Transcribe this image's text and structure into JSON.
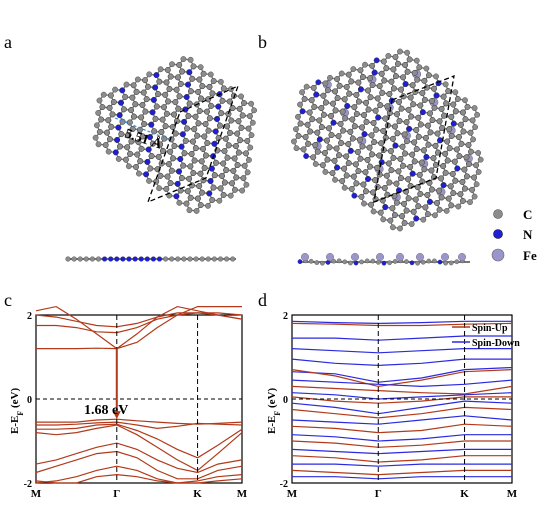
{
  "figure": {
    "panel_labels": [
      "a",
      "b",
      "c",
      "d"
    ],
    "lattice_constant": "5.51 Å",
    "legend_atoms": [
      {
        "symbol": "C",
        "color": "#8c8c8c"
      },
      {
        "symbol": "N",
        "color": "#1f1fd6"
      },
      {
        "symbol": "Fe",
        "color": "#9a96cc"
      }
    ],
    "colors": {
      "spin_up": "#b23a1a",
      "spin_down": "#2a2ae0",
      "band_c": "#b23a1a"
    }
  },
  "chart_data": [
    {
      "type": "line",
      "panel": "c",
      "ylabel": "E-E",
      "ylabel_sub": "F",
      "ylabel_unit": " (eV)",
      "ylim": [
        -2,
        2
      ],
      "yticks": [
        "2",
        "0",
        "-2"
      ],
      "xticks": [
        "M",
        "Γ",
        "K",
        "M"
      ],
      "k_positions": [
        0,
        1,
        2,
        2.55
      ],
      "gap_annotation": "1.68 eV",
      "gap": {
        "k": 1,
        "from": 1.2,
        "to": -0.48
      },
      "series": [
        {
          "x": [
            0,
            0.25,
            0.5,
            0.75,
            1,
            1.25,
            1.5,
            1.75,
            2,
            2.25,
            2.55
          ],
          "y": [
            1.2,
            1.2,
            1.2,
            1.21,
            1.2,
            1.35,
            1.7,
            2.0,
            2.2,
            2.2,
            2.2
          ]
        },
        {
          "x": [
            0,
            0.25,
            0.5,
            0.75,
            1,
            1.25,
            1.5,
            1.75,
            2,
            2.25,
            2.55
          ],
          "y": [
            2.1,
            2.2,
            1.9,
            1.55,
            1.2,
            1.55,
            1.95,
            2.2,
            2.1,
            2.0,
            1.9
          ]
        },
        {
          "x": [
            0,
            0.25,
            0.5,
            0.75,
            1,
            1.25,
            1.5,
            1.75,
            2,
            2.25,
            2.55
          ],
          "y": [
            1.75,
            1.75,
            1.7,
            1.6,
            1.58,
            1.7,
            1.9,
            2.0,
            2.05,
            2.0,
            1.9
          ]
        },
        {
          "x": [
            0,
            0.25,
            0.5,
            0.75,
            1,
            1.25,
            1.5,
            1.75,
            2,
            2.25,
            2.55
          ],
          "y": [
            2.0,
            1.95,
            1.85,
            1.75,
            1.72,
            1.8,
            1.95,
            2.05,
            2.05,
            2.05,
            2.0
          ]
        },
        {
          "x": [
            0,
            0.25,
            0.5,
            0.75,
            1,
            1.25,
            1.5,
            1.75,
            2,
            2.25,
            2.55
          ],
          "y": [
            -0.55,
            -0.55,
            -0.55,
            -0.5,
            -0.48,
            -0.52,
            -0.55,
            -0.58,
            -0.6,
            -0.58,
            -0.55
          ]
        },
        {
          "x": [
            0,
            0.25,
            0.5,
            0.75,
            1,
            1.25,
            1.5,
            1.75,
            2,
            2.25,
            2.55
          ],
          "y": [
            -0.62,
            -0.62,
            -0.6,
            -0.57,
            -0.55,
            -0.62,
            -0.7,
            -0.65,
            -0.58,
            -0.6,
            -0.62
          ]
        },
        {
          "x": [
            0,
            0.25,
            0.5,
            0.75,
            1,
            1.25,
            1.5,
            1.75,
            2,
            2.25,
            2.55
          ],
          "y": [
            -0.72,
            -0.72,
            -0.7,
            -0.62,
            -0.6,
            -0.75,
            -0.95,
            -1.2,
            -1.4,
            -1.1,
            -0.72
          ]
        },
        {
          "x": [
            0,
            0.25,
            0.5,
            0.75,
            1,
            1.25,
            1.5,
            1.75,
            2,
            2.25,
            2.55
          ],
          "y": [
            -0.8,
            -0.85,
            -0.8,
            -0.7,
            -0.62,
            -0.85,
            -1.15,
            -1.45,
            -1.7,
            -1.3,
            -0.8
          ]
        },
        {
          "x": [
            0,
            0.25,
            0.5,
            0.75,
            1,
            1.25,
            1.5,
            1.75,
            2,
            2.25,
            2.55
          ],
          "y": [
            -1.55,
            -1.45,
            -1.3,
            -1.15,
            -1.05,
            -1.2,
            -1.45,
            -1.65,
            -1.75,
            -1.55,
            -1.45
          ]
        },
        {
          "x": [
            0,
            0.25,
            0.5,
            0.75,
            1,
            1.25,
            1.5,
            1.75,
            2,
            2.25,
            2.55
          ],
          "y": [
            -1.75,
            -1.6,
            -1.45,
            -1.3,
            -1.25,
            -1.4,
            -1.7,
            -1.9,
            -1.9,
            -1.7,
            -1.6
          ]
        },
        {
          "x": [
            0,
            0.25,
            0.5,
            0.75,
            1,
            1.25,
            1.5,
            1.75,
            2,
            2.25,
            2.55
          ],
          "y": [
            -1.95,
            -2.0,
            -2.0,
            -1.85,
            -1.8,
            -1.85,
            -1.95,
            -2.0,
            -1.95,
            -1.85,
            -1.8
          ]
        },
        {
          "x": [
            0,
            0.25,
            0.5,
            0.75,
            1,
            1.25,
            1.5,
            1.75,
            2,
            2.25,
            2.55
          ],
          "y": [
            -2.0,
            -1.95,
            -1.85,
            -1.7,
            -1.6,
            -1.7,
            -1.9,
            -2.0,
            -2.0,
            -1.95,
            -1.9
          ]
        }
      ]
    },
    {
      "type": "line",
      "panel": "d",
      "ylabel": "E-E",
      "ylabel_sub": "F",
      "ylabel_unit": " (eV)",
      "ylim": [
        -2,
        2
      ],
      "yticks": [
        "2",
        "0",
        "-2"
      ],
      "xticks": [
        "M",
        "Γ",
        "K",
        "M"
      ],
      "k_positions": [
        0,
        1,
        2,
        2.55
      ],
      "legend": "top-right",
      "series": [
        {
          "name": "Spin-Up",
          "x": [
            0,
            0.5,
            1,
            1.5,
            2,
            2.55
          ],
          "y": [
            1.8,
            1.78,
            1.75,
            1.75,
            1.78,
            1.8
          ]
        },
        {
          "name": "Spin-Down",
          "x": [
            0,
            0.5,
            1,
            1.5,
            2,
            2.55
          ],
          "y": [
            1.85,
            1.82,
            1.8,
            1.82,
            1.85,
            1.85
          ]
        },
        {
          "name": "Spin-Down",
          "x": [
            0,
            0.5,
            1,
            1.5,
            2,
            2.55
          ],
          "y": [
            1.45,
            1.45,
            1.4,
            1.45,
            1.5,
            1.5
          ]
        },
        {
          "name": "Spin-Down",
          "x": [
            0,
            0.5,
            1,
            1.5,
            2,
            2.55
          ],
          "y": [
            1.2,
            1.15,
            1.1,
            1.15,
            1.2,
            1.2
          ]
        },
        {
          "name": "Spin-Down",
          "x": [
            0,
            0.5,
            1,
            1.5,
            2,
            2.55
          ],
          "y": [
            0.95,
            0.85,
            0.8,
            0.85,
            0.95,
            0.95
          ]
        },
        {
          "name": "Spin-Down",
          "x": [
            0,
            0.5,
            1,
            1.5,
            2,
            2.55
          ],
          "y": [
            0.65,
            0.6,
            0.4,
            0.5,
            0.7,
            0.75
          ]
        },
        {
          "name": "Spin-Up",
          "x": [
            0,
            0.5,
            1,
            1.5,
            2,
            2.55
          ],
          "y": [
            0.7,
            0.55,
            0.3,
            0.45,
            0.65,
            0.7
          ]
        },
        {
          "name": "Spin-Down",
          "x": [
            0,
            0.5,
            1,
            1.5,
            2,
            2.55
          ],
          "y": [
            0.45,
            0.4,
            0.35,
            0.3,
            0.35,
            0.45
          ]
        },
        {
          "name": "Spin-Up",
          "x": [
            0,
            0.5,
            1,
            1.5,
            2,
            2.55
          ],
          "y": [
            0.3,
            0.25,
            0.2,
            0.15,
            0.12,
            0.3
          ]
        },
        {
          "name": "Spin-Down",
          "x": [
            0,
            0.5,
            1,
            1.5,
            2,
            2.55
          ],
          "y": [
            0.15,
            0.1,
            0.0,
            0.05,
            0.1,
            0.15
          ]
        },
        {
          "name": "Spin-Up",
          "x": [
            0,
            0.5,
            1,
            1.5,
            2,
            2.55
          ],
          "y": [
            0.05,
            -0.05,
            -0.1,
            -0.05,
            0.05,
            0.05
          ]
        },
        {
          "name": "Spin-Down",
          "x": [
            0,
            0.5,
            1,
            1.5,
            2,
            2.55
          ],
          "y": [
            -0.1,
            -0.2,
            -0.35,
            -0.2,
            -0.05,
            -0.1
          ]
        },
        {
          "name": "Spin-Up",
          "x": [
            0,
            0.5,
            1,
            1.5,
            2,
            2.55
          ],
          "y": [
            -0.25,
            -0.35,
            -0.45,
            -0.35,
            -0.2,
            -0.25
          ]
        },
        {
          "name": "Spin-Down",
          "x": [
            0,
            0.5,
            1,
            1.5,
            2,
            2.55
          ],
          "y": [
            -0.5,
            -0.55,
            -0.6,
            -0.5,
            -0.4,
            -0.5
          ]
        },
        {
          "name": "Spin-Up",
          "x": [
            0,
            0.5,
            1,
            1.5,
            2,
            2.55
          ],
          "y": [
            -0.65,
            -0.7,
            -0.8,
            -0.75,
            -0.6,
            -0.65
          ]
        },
        {
          "name": "Spin-Down",
          "x": [
            0,
            0.5,
            1,
            1.5,
            2,
            2.55
          ],
          "y": [
            -0.85,
            -0.9,
            -1.0,
            -0.95,
            -0.85,
            -0.85
          ]
        },
        {
          "name": "Spin-Up",
          "x": [
            0,
            0.5,
            1,
            1.5,
            2,
            2.55
          ],
          "y": [
            -1.0,
            -1.05,
            -1.15,
            -1.1,
            -1.0,
            -1.0
          ]
        },
        {
          "name": "Spin-Down",
          "x": [
            0,
            0.5,
            1,
            1.5,
            2,
            2.55
          ],
          "y": [
            -1.2,
            -1.25,
            -1.3,
            -1.25,
            -1.2,
            -1.2
          ]
        },
        {
          "name": "Spin-Up",
          "x": [
            0,
            0.5,
            1,
            1.5,
            2,
            2.55
          ],
          "y": [
            -1.35,
            -1.4,
            -1.5,
            -1.45,
            -1.35,
            -1.35
          ]
        },
        {
          "name": "Spin-Down",
          "x": [
            0,
            0.5,
            1,
            1.5,
            2,
            2.55
          ],
          "y": [
            -1.55,
            -1.55,
            -1.6,
            -1.55,
            -1.55,
            -1.55
          ]
        },
        {
          "name": "Spin-Up",
          "x": [
            0,
            0.5,
            1,
            1.5,
            2,
            2.55
          ],
          "y": [
            -1.7,
            -1.75,
            -1.8,
            -1.75,
            -1.7,
            -1.7
          ]
        },
        {
          "name": "Spin-Down",
          "x": [
            0,
            0.5,
            1,
            1.5,
            2,
            2.55
          ],
          "y": [
            -1.85,
            -1.85,
            -1.9,
            -1.85,
            -1.85,
            -1.85
          ]
        }
      ]
    }
  ]
}
